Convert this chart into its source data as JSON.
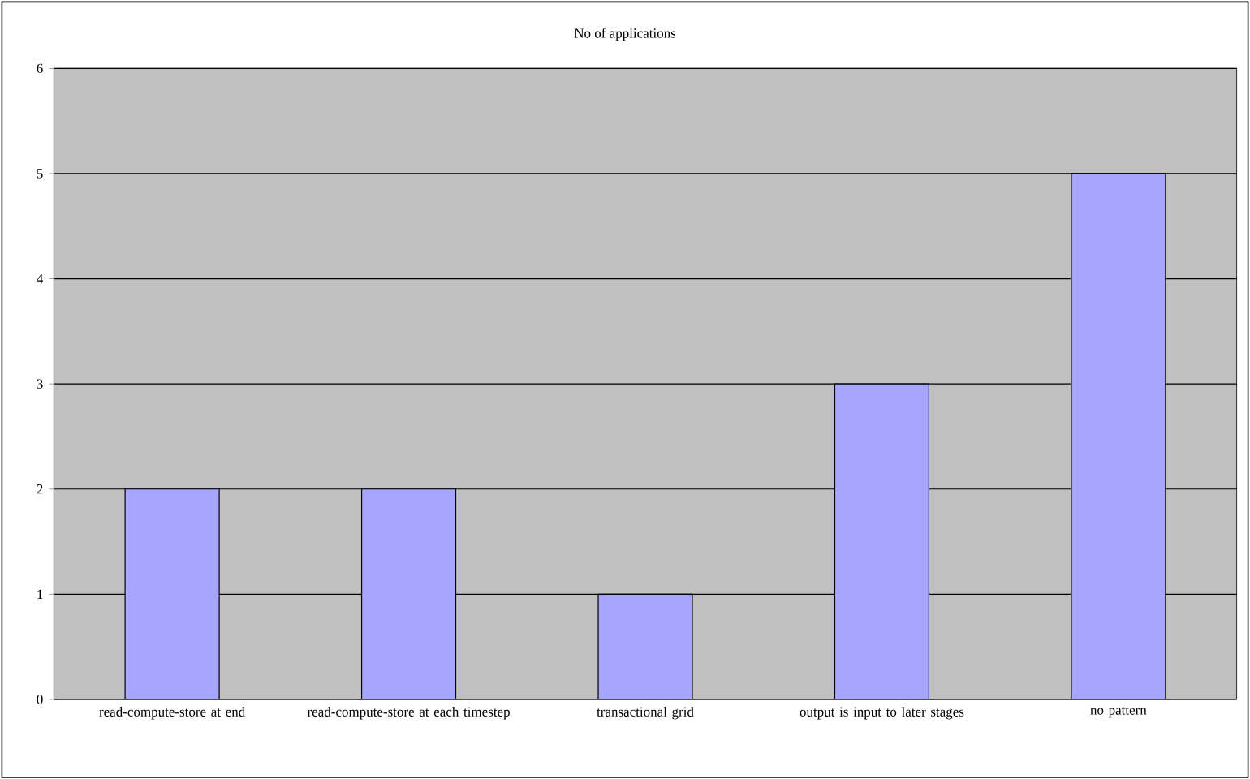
{
  "chart_data": {
    "type": "bar",
    "title": "No of applications",
    "categories": [
      "read-compute-store at end",
      "read-compute-store at each timestep",
      "transactional grid",
      "output is input to later stages",
      "no pattern"
    ],
    "values": [
      2,
      2,
      1,
      3,
      5
    ],
    "color": "#a6a6ff",
    "ylim": [
      0,
      6
    ],
    "yticks": [
      0,
      1,
      2,
      3,
      4,
      5,
      6
    ],
    "grid": "y"
  }
}
